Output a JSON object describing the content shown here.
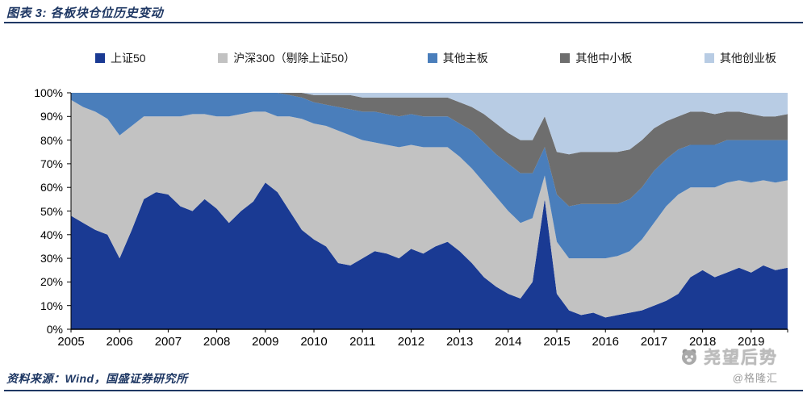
{
  "header": {
    "title": "图表 3:  各板块仓位历史变动"
  },
  "footer": {
    "source": "资料来源：Wind，国盛证券研究所"
  },
  "watermark": {
    "name": "尧望后势",
    "handle": "@格隆汇"
  },
  "colors": {
    "accent": "#1F3864",
    "axis": "#000000"
  },
  "chart_data": {
    "type": "area",
    "stacked": true,
    "title": "各板块仓位历史变动",
    "xlabel": "",
    "ylabel": "",
    "unit": "percent",
    "ylim": [
      0,
      100
    ],
    "grid": false,
    "legend_position": "top",
    "yticks": [
      "0%",
      "10%",
      "20%",
      "30%",
      "40%",
      "50%",
      "60%",
      "70%",
      "80%",
      "90%",
      "100%"
    ],
    "xticks": [
      "2005",
      "2006",
      "2007",
      "2008",
      "2009",
      "2010",
      "2011",
      "2012",
      "2013",
      "2014",
      "2015",
      "2016",
      "2017",
      "2018",
      "2019"
    ],
    "x": [
      "2005Q1",
      "2005Q2",
      "2005Q3",
      "2005Q4",
      "2006Q1",
      "2006Q2",
      "2006Q3",
      "2006Q4",
      "2007Q1",
      "2007Q2",
      "2007Q3",
      "2007Q4",
      "2008Q1",
      "2008Q2",
      "2008Q3",
      "2008Q4",
      "2009Q1",
      "2009Q2",
      "2009Q3",
      "2009Q4",
      "2010Q1",
      "2010Q2",
      "2010Q3",
      "2010Q4",
      "2011Q1",
      "2011Q2",
      "2011Q3",
      "2011Q4",
      "2012Q1",
      "2012Q2",
      "2012Q3",
      "2012Q4",
      "2013Q1",
      "2013Q2",
      "2013Q3",
      "2013Q4",
      "2014Q1",
      "2014Q2",
      "2014Q3",
      "2014Q4",
      "2015Q1",
      "2015Q2",
      "2015Q3",
      "2015Q4",
      "2016Q1",
      "2016Q2",
      "2016Q3",
      "2016Q4",
      "2017Q1",
      "2017Q2",
      "2017Q3",
      "2017Q4",
      "2018Q1",
      "2018Q2",
      "2018Q3",
      "2018Q4",
      "2019Q1",
      "2019Q2",
      "2019Q3",
      "2019Q4"
    ],
    "series": [
      {
        "name": "上证50",
        "color": "#1A3A93",
        "values": [
          48,
          45,
          42,
          40,
          30,
          42,
          55,
          58,
          57,
          52,
          50,
          55,
          51,
          45,
          50,
          54,
          62,
          58,
          50,
          42,
          38,
          35,
          28,
          27,
          30,
          33,
          32,
          30,
          34,
          32,
          35,
          37,
          33,
          28,
          22,
          18,
          15,
          13,
          20,
          55,
          15,
          8,
          6,
          7,
          5,
          6,
          7,
          8,
          10,
          12,
          15,
          22,
          25,
          22,
          24,
          26,
          24,
          27,
          25,
          26
        ]
      },
      {
        "name": "沪深300（剔除上证50）",
        "color": "#C2C2C2",
        "values": [
          49,
          49,
          50,
          49,
          52,
          44,
          35,
          32,
          33,
          38,
          41,
          36,
          39,
          45,
          41,
          38,
          30,
          32,
          40,
          47,
          49,
          51,
          56,
          55,
          50,
          46,
          46,
          47,
          44,
          45,
          42,
          40,
          40,
          40,
          40,
          38,
          35,
          32,
          27,
          10,
          22,
          22,
          24,
          23,
          25,
          25,
          26,
          30,
          35,
          40,
          42,
          38,
          35,
          38,
          38,
          37,
          38,
          36,
          37,
          37
        ]
      },
      {
        "name": "其他主板",
        "color": "#4A7EBB",
        "values": [
          3,
          6,
          8,
          11,
          18,
          14,
          10,
          10,
          10,
          10,
          9,
          9,
          10,
          10,
          9,
          8,
          8,
          10,
          9,
          9,
          9,
          9,
          10,
          11,
          12,
          13,
          13,
          13,
          13,
          13,
          13,
          13,
          14,
          16,
          17,
          18,
          20,
          21,
          19,
          12,
          20,
          22,
          23,
          23,
          23,
          22,
          22,
          22,
          22,
          20,
          19,
          18,
          18,
          18,
          18,
          17,
          18,
          17,
          18,
          17
        ]
      },
      {
        "name": "其他中小板",
        "color": "#6E6E6E",
        "values": [
          0,
          0,
          0,
          0,
          0,
          0,
          0,
          0,
          0,
          0,
          0,
          0,
          0,
          0,
          0,
          0,
          0,
          0,
          1,
          2,
          3,
          4,
          5,
          6,
          6,
          6,
          7,
          8,
          7,
          8,
          8,
          8,
          9,
          10,
          12,
          13,
          13,
          14,
          14,
          13,
          18,
          22,
          22,
          22,
          22,
          22,
          21,
          20,
          18,
          16,
          14,
          14,
          14,
          13,
          12,
          12,
          11,
          10,
          10,
          11
        ]
      },
      {
        "name": "其他创业板",
        "color": "#B8CCE4",
        "values": [
          0,
          0,
          0,
          0,
          0,
          0,
          0,
          0,
          0,
          0,
          0,
          0,
          0,
          0,
          0,
          0,
          0,
          0,
          0,
          0,
          1,
          1,
          1,
          1,
          2,
          2,
          2,
          2,
          2,
          2,
          2,
          2,
          4,
          6,
          9,
          13,
          17,
          20,
          20,
          10,
          25,
          26,
          25,
          25,
          25,
          25,
          24,
          20,
          15,
          12,
          10,
          8,
          8,
          9,
          8,
          8,
          9,
          10,
          10,
          9
        ]
      }
    ]
  }
}
